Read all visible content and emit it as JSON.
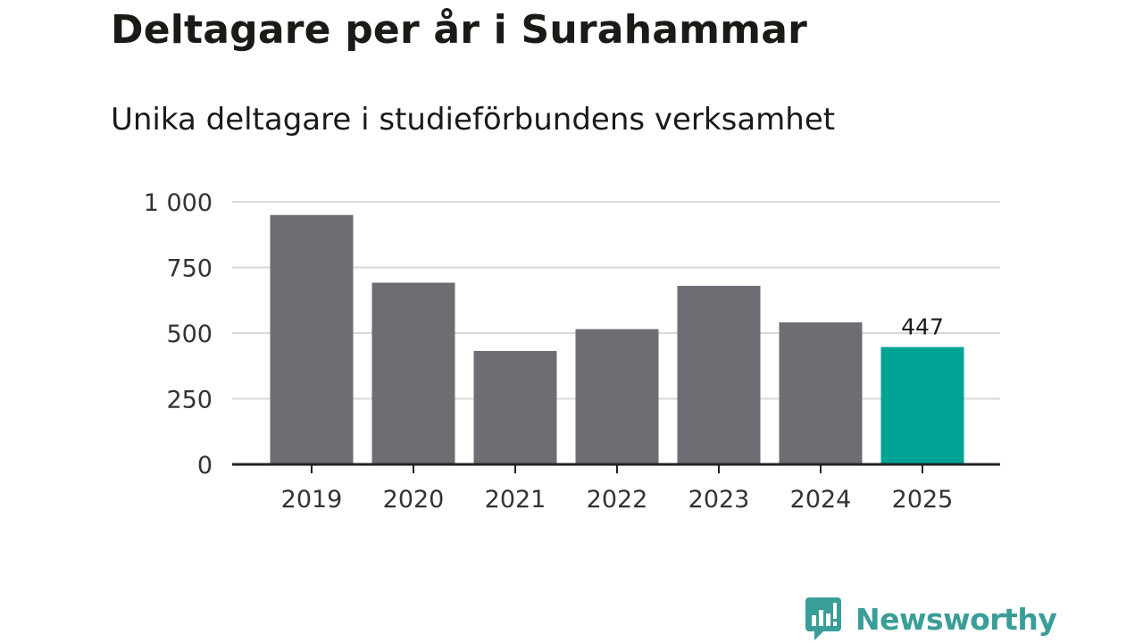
{
  "header": {
    "title": "Deltagare per år i Surahammar",
    "subtitle": "Unika deltagare i studieförbundens verksamhet"
  },
  "brand": {
    "name": "Newsworthy",
    "icon": "newsworthy-logo-icon",
    "color": "#3a9e98"
  },
  "colors": {
    "bar_default": "#6e6d73",
    "bar_highlight": "#00a396",
    "grid": "#d9d9d9",
    "axis": "#222222"
  },
  "chart_data": {
    "type": "bar",
    "categories": [
      "2019",
      "2020",
      "2021",
      "2022",
      "2023",
      "2024",
      "2025"
    ],
    "values": [
      950,
      692,
      432,
      515,
      680,
      541,
      447
    ],
    "title": "Deltagare per år i Surahammar",
    "subtitle": "Unika deltagare i studieförbundens verksamhet",
    "xlabel": "",
    "ylabel": "",
    "ylim": [
      0,
      1000
    ],
    "yticks": [
      0,
      250,
      500,
      750,
      1000
    ],
    "ytick_labels": [
      "0",
      "250",
      "500",
      "750",
      "1 000"
    ],
    "grid": true,
    "legend": "none",
    "highlight_index": 6,
    "data_labels": [
      {
        "index": 6,
        "text": "447"
      }
    ]
  }
}
